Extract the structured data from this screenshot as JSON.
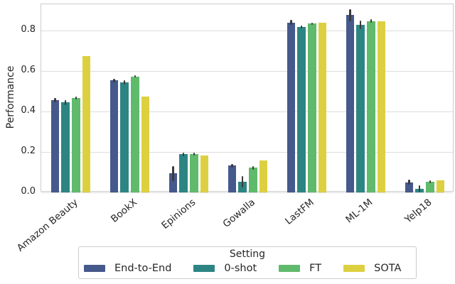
{
  "chart_data": {
    "type": "bar",
    "title": "",
    "xlabel": "",
    "ylabel": "Performance",
    "categories": [
      "Amazon Beauty",
      "BookX",
      "Epinions",
      "Gowalla",
      "LastFM",
      "ML-1M",
      "Yelp18"
    ],
    "series": [
      {
        "name": "End-to-End",
        "color": "#46598c",
        "values": [
          0.455,
          0.553,
          0.094,
          0.132,
          0.84,
          0.877,
          0.05
        ],
        "errors": [
          0.01,
          0.008,
          0.037,
          0.009,
          0.013,
          0.03,
          0.013
        ]
      },
      {
        "name": "0-shot",
        "color": "#2d8583",
        "values": [
          0.445,
          0.545,
          0.188,
          0.054,
          0.818,
          0.828,
          0.018
        ],
        "errors": [
          0.012,
          0.01,
          0.009,
          0.028,
          0.008,
          0.021,
          0.016
        ]
      },
      {
        "name": "FT",
        "color": "#60ba6c",
        "values": [
          0.468,
          0.573,
          0.19,
          0.122,
          0.834,
          0.847,
          0.053
        ],
        "errors": [
          0.007,
          0.005,
          0.007,
          0.009,
          0.006,
          0.01,
          0.008
        ]
      },
      {
        "name": "SOTA",
        "color": "#ddd040",
        "values": [
          0.675,
          0.475,
          0.181,
          0.158,
          0.838,
          0.845,
          0.06
        ],
        "errors": [
          0,
          0,
          0,
          0,
          0,
          0,
          0
        ]
      }
    ],
    "ylim": [
      0,
      0.93
    ],
    "yticks": [
      "0.0",
      "0.2",
      "0.4",
      "0.6",
      "0.8"
    ],
    "grid": "horizontal",
    "legend": {
      "title": "Setting",
      "position": "bottom"
    },
    "style": {
      "grid_color": "#dddddd",
      "spine_color": "#cccccc",
      "errorbar_color": "#3b3b3b",
      "text_color": "#262626",
      "background": "#ffffff"
    }
  }
}
